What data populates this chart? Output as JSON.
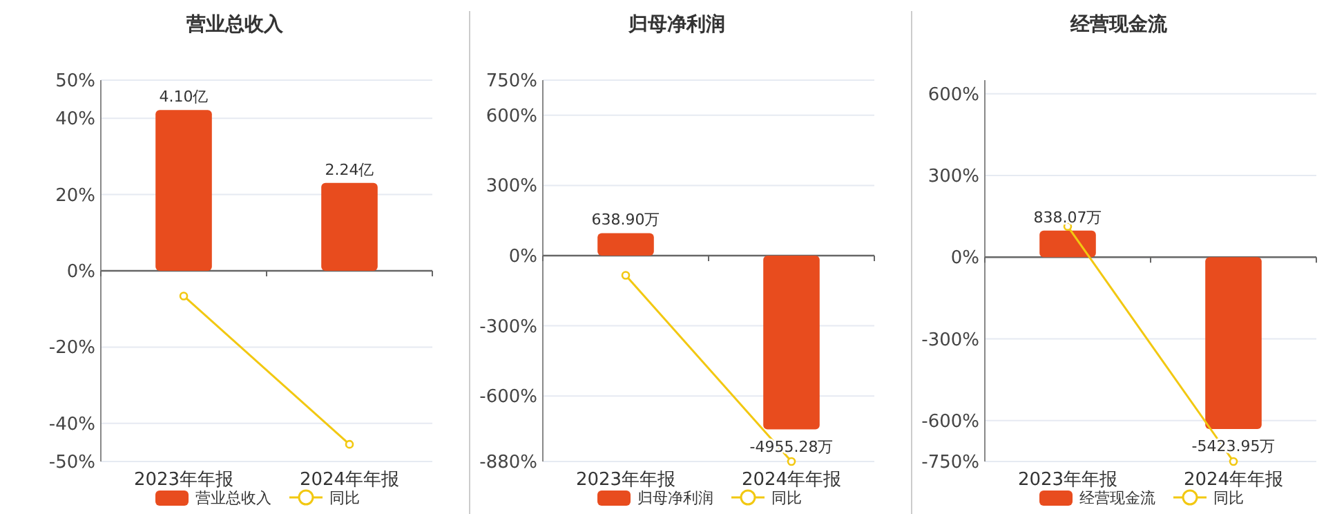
{
  "chart_data": [
    {
      "type": "bar",
      "title": "营业总收入",
      "categories": [
        "2023年年报",
        "2024年年报"
      ],
      "series": [
        {
          "name": "营业总收入",
          "axis": "y2",
          "color": "#e84c1e",
          "values": [
            4.1,
            2.24
          ],
          "value_labels": [
            "4.10亿",
            "2.24亿"
          ]
        },
        {
          "name": "同比",
          "type": "line",
          "color": "#f2c811",
          "values": [
            -6.6,
            -45.5
          ]
        }
      ],
      "ylim": [
        -50,
        50
      ],
      "yticks": [
        {
          "value": 50,
          "label": "50%"
        },
        {
          "value": 40,
          "label": "40%"
        },
        {
          "value": 20,
          "label": "20%"
        },
        {
          "value": 0,
          "label": "0%"
        },
        {
          "value": -20,
          "label": "-20%"
        },
        {
          "value": -40,
          "label": "-40%"
        },
        {
          "value": -50,
          "label": "-50%"
        }
      ],
      "y2lim": [
        -4.86,
        4.86
      ],
      "grid": "y",
      "legend": "bottom",
      "marker": "circle"
    },
    {
      "type": "bar",
      "title": "归母净利润",
      "categories": [
        "2023年年报",
        "2024年年报"
      ],
      "series": [
        {
          "name": "归母净利润",
          "axis": "y2",
          "color": "#e84c1e",
          "values": [
            638.9,
            -4955.28
          ],
          "value_labels": [
            "638.90万",
            "-4955.28万"
          ]
        },
        {
          "name": "同比",
          "type": "line",
          "color": "#f2c811",
          "values": [
            -84,
            -880
          ]
        }
      ],
      "ylim": [
        -880,
        750
      ],
      "yticks": [
        {
          "value": 750,
          "label": "750%"
        },
        {
          "value": 600,
          "label": "600%"
        },
        {
          "value": 300,
          "label": "300%"
        },
        {
          "value": 0,
          "label": "0%"
        },
        {
          "value": -300,
          "label": "-300%"
        },
        {
          "value": -600,
          "label": "-600%"
        },
        {
          "value": -880,
          "label": "-880%"
        }
      ],
      "y2lim": [
        -5870,
        5000
      ],
      "grid": "y",
      "legend": "bottom",
      "marker": "circle"
    },
    {
      "type": "bar",
      "title": "经营现金流",
      "categories": [
        "2023年年报",
        "2024年年报"
      ],
      "series": [
        {
          "name": "经营现金流",
          "axis": "y2",
          "color": "#e84c1e",
          "values": [
            838.07,
            -5423.95
          ],
          "value_labels": [
            "838.07万",
            "-5423.95万"
          ]
        },
        {
          "name": "同比",
          "type": "line",
          "color": "#f2c811",
          "values": [
            113,
            -750
          ]
        }
      ],
      "ylim": [
        -750,
        650
      ],
      "yticks": [
        {
          "value": 600,
          "label": "600%"
        },
        {
          "value": 300,
          "label": "300%"
        },
        {
          "value": 0,
          "label": "0%"
        },
        {
          "value": -300,
          "label": "-300%"
        },
        {
          "value": -600,
          "label": "-600%"
        },
        {
          "value": -750,
          "label": "-750%"
        }
      ],
      "y2lim": [
        -6450,
        5590
      ],
      "grid": "y",
      "legend": "bottom",
      "marker": "circle"
    }
  ]
}
